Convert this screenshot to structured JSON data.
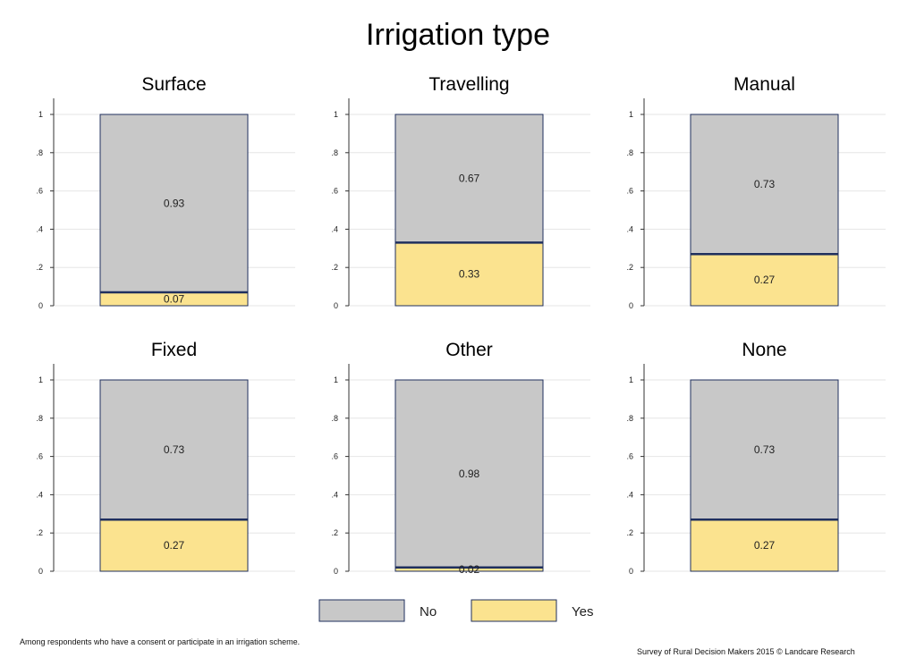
{
  "title": "Irrigation type",
  "footnote": "Among respondents who have a consent or participate in an irrigation scheme.",
  "source": "Survey of Rural Decision Makers 2015 © Landcare Research",
  "colors": {
    "no": "#c8c8c8",
    "yes": "#fbe38f",
    "border": "#1f2f5e",
    "grid": "#e6e6e6"
  },
  "chart_data": {
    "type": "bar",
    "stacked": true,
    "title": "Irrigation type",
    "ylim": [
      0,
      1
    ],
    "y_ticks": [
      "0",
      ".2",
      ".4",
      ".6",
      ".8",
      "1"
    ],
    "grid": true,
    "legend": {
      "placement": "bottom",
      "entries": [
        "No",
        "Yes"
      ]
    },
    "series": [
      {
        "name": "No"
      },
      {
        "name": "Yes"
      }
    ],
    "panels": [
      {
        "title": "Surface",
        "no": 0.93,
        "yes": 0.07,
        "no_label": "0.93",
        "yes_label": "0.07"
      },
      {
        "title": "Travelling",
        "no": 0.67,
        "yes": 0.33,
        "no_label": "0.67",
        "yes_label": "0.33"
      },
      {
        "title": "Manual",
        "no": 0.73,
        "yes": 0.27,
        "no_label": "0.73",
        "yes_label": "0.27"
      },
      {
        "title": "Fixed",
        "no": 0.73,
        "yes": 0.27,
        "no_label": "0.73",
        "yes_label": "0.27"
      },
      {
        "title": "Other",
        "no": 0.98,
        "yes": 0.02,
        "no_label": "0.98",
        "yes_label": "0.02"
      },
      {
        "title": "None",
        "no": 0.73,
        "yes": 0.27,
        "no_label": "0.73",
        "yes_label": "0.27"
      }
    ]
  }
}
